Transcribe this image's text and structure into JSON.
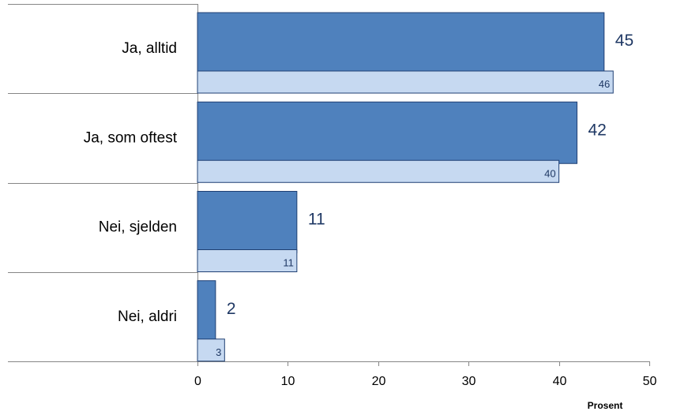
{
  "chart_data": {
    "type": "bar",
    "orientation": "horizontal",
    "categories": [
      "Ja, alltid",
      "Ja, som oftest",
      "Nei, sjelden",
      "Nei, aldri"
    ],
    "series": [
      {
        "values": [
          45,
          42,
          11,
          2
        ],
        "labels": [
          "45",
          "42",
          "11",
          "2"
        ]
      },
      {
        "values": [
          46,
          40,
          11,
          3
        ],
        "labels": [
          "46",
          "40",
          "11",
          "3"
        ]
      }
    ],
    "xlim": [
      0,
      50
    ],
    "x_ticks": [
      "0",
      "10",
      "20",
      "30",
      "40",
      "50"
    ],
    "xlabel": "Prosent",
    "ylabel": "",
    "grid": false,
    "legend": "none",
    "colors": {
      "series_0_fill": "#4f81bd",
      "series_0_stroke": "#1f3f73",
      "series_1_fill": "#c6d9f1",
      "series_1_stroke": "#1f3f73",
      "value_text": "#1f3864",
      "xlabel_text": "#2e5c9a",
      "axis": "#868686"
    }
  }
}
